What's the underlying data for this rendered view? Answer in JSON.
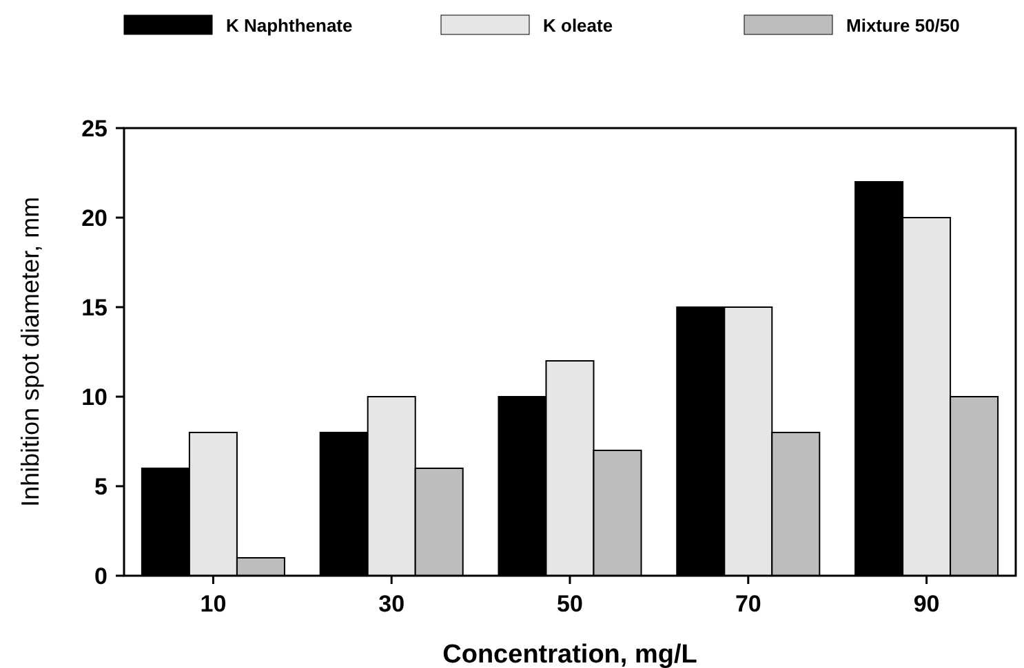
{
  "chart_data": {
    "type": "bar",
    "xlabel": "Concentration, mg/L",
    "ylabel": "Inhibition spot diameter, mm",
    "categories": [
      "10",
      "30",
      "50",
      "70",
      "90"
    ],
    "series": [
      {
        "name": "K Naphthenate",
        "color": "#000000",
        "values": [
          6,
          8,
          10,
          15,
          22
        ]
      },
      {
        "name": "K oleate",
        "color": "#e6e6e6",
        "values": [
          8,
          10,
          12,
          15,
          20
        ]
      },
      {
        "name": "Mixture 50/50",
        "color": "#bdbdbd",
        "values": [
          1,
          6,
          7,
          8,
          10
        ]
      }
    ],
    "ylim": [
      0,
      25
    ],
    "yticks": [
      0,
      5,
      10,
      15,
      20,
      25
    ],
    "legend": "top",
    "grid": false
  }
}
